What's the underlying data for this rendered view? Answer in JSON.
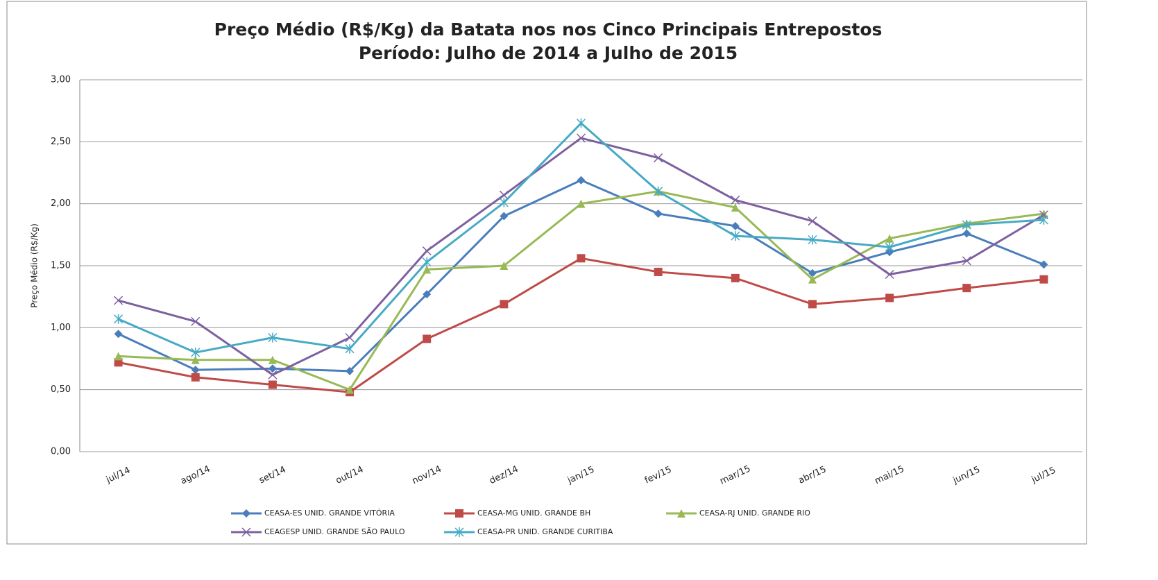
{
  "chart_data": {
    "type": "line",
    "title": "Preço Médio (R$/Kg) da Batata nos nos Cinco Principais Entrepostos",
    "subtitle": "Período: Julho de 2014 a Julho de 2015",
    "y_label": "Preço Médio (R$/Kg)",
    "categories": [
      "jul/14",
      "ago/14",
      "set/14",
      "out/14",
      "nov/14",
      "dez/14",
      "jan/15",
      "fev/15",
      "mar/15",
      "abr/15",
      "mai/15",
      "jun/15",
      "jul/15"
    ],
    "ylim": [
      0,
      3
    ],
    "yticks": [
      {
        "value": 0,
        "label": "0,00"
      },
      {
        "value": 0.5,
        "label": "0,50"
      },
      {
        "value": 1,
        "label": "1,00"
      },
      {
        "value": 1.5,
        "label": "1,50"
      },
      {
        "value": 2,
        "label": "2,00"
      },
      {
        "value": 2.5,
        "label": "2,50"
      },
      {
        "value": 3,
        "label": "3,00"
      }
    ],
    "grid": true,
    "legend": "bottom",
    "series": [
      {
        "name": "CEASA-ES UNID. GRANDE VITÓRIA",
        "color": "#4a7ebb",
        "marker": "diamond",
        "values": [
          0.95,
          0.66,
          0.67,
          0.65,
          1.27,
          1.9,
          2.19,
          1.92,
          1.82,
          1.44,
          1.61,
          1.76,
          1.51
        ]
      },
      {
        "name": "CEASA-MG UNID. GRANDE BH",
        "color": "#be4b48",
        "marker": "square",
        "values": [
          0.72,
          0.6,
          0.54,
          0.48,
          0.91,
          1.19,
          1.56,
          1.45,
          1.4,
          1.19,
          1.24,
          1.32,
          1.39
        ]
      },
      {
        "name": "CEASA-RJ UNID. GRANDE RIO",
        "color": "#98b954",
        "marker": "triangle",
        "values": [
          0.77,
          0.74,
          0.74,
          0.5,
          1.47,
          1.5,
          2.0,
          2.1,
          1.97,
          1.39,
          1.72,
          1.84,
          1.92
        ]
      },
      {
        "name": "CEAGESP UNID. GRANDE SÃO PAULO",
        "color": "#7d60a0",
        "marker": "x",
        "values": [
          1.22,
          1.05,
          0.62,
          0.92,
          1.62,
          2.07,
          2.53,
          2.37,
          2.03,
          1.86,
          1.43,
          1.54,
          1.91
        ]
      },
      {
        "name": "CEASA-PR UNID. GRANDE CURITIBA",
        "color": "#46aac5",
        "marker": "star",
        "values": [
          1.07,
          0.8,
          0.92,
          0.83,
          1.53,
          2.01,
          2.65,
          2.1,
          1.74,
          1.71,
          1.65,
          1.83,
          1.87
        ]
      }
    ]
  }
}
